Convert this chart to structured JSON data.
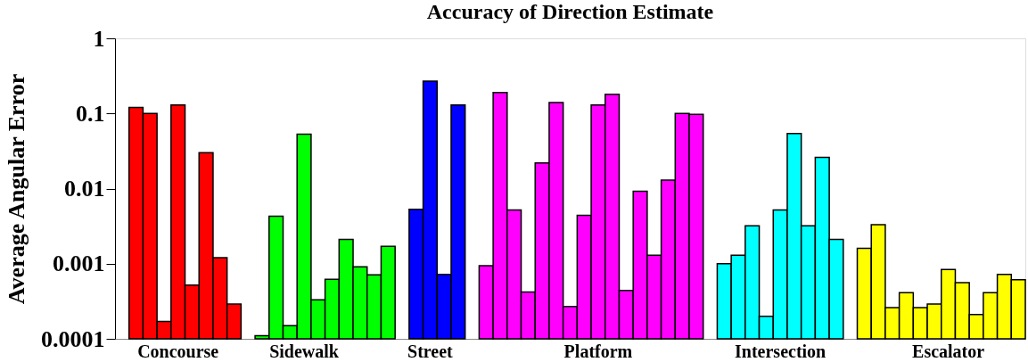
{
  "chart_data": {
    "type": "bar",
    "title": "Accuracy of Direction Estimate",
    "ylabel": "Average Angular Error",
    "log": true,
    "grid": false,
    "ylim": [
      0.0001,
      1
    ],
    "yticks": [
      0.0001,
      0.001,
      0.01,
      0.1,
      1
    ],
    "categories": [
      null,
      null,
      null,
      null,
      "Concourse",
      null,
      null,
      null,
      null,
      null,
      null,
      null,
      null,
      "Sidewalk",
      null,
      null,
      null,
      null,
      null,
      null,
      null,
      null,
      "Street",
      null,
      null,
      null,
      null,
      null,
      null,
      null,
      null,
      null,
      null,
      null,
      "Platform",
      null,
      null,
      null,
      null,
      null,
      null,
      null,
      null,
      null,
      null,
      null,
      null,
      "Intersection",
      null,
      null,
      null,
      null,
      null,
      null,
      null,
      null,
      null,
      null,
      null,
      "Escalator",
      null,
      null,
      null,
      null,
      null
    ],
    "values": [
      null,
      0.12,
      0.1,
      0.00017,
      0.13,
      0.00052,
      0.03,
      0.0012,
      0.00029,
      null,
      0.00011,
      0.0043,
      0.00015,
      0.053,
      0.00033,
      0.00062,
      0.0021,
      0.00091,
      0.00071,
      0.0017,
      null,
      0.0053,
      0.27,
      0.00072,
      0.13,
      null,
      0.00094,
      0.19,
      0.0052,
      0.00042,
      0.022,
      0.14,
      0.00027,
      0.0044,
      0.13,
      0.18,
      0.00044,
      0.0092,
      0.0013,
      0.013,
      0.1,
      0.097,
      null,
      0.001,
      0.0013,
      0.0032,
      0.0002,
      0.0052,
      0.054,
      0.0032,
      0.026,
      0.0021,
      null,
      0.0016,
      0.0033,
      0.00026,
      0.00041,
      0.00026,
      0.00029,
      0.00084,
      0.00056,
      0.00021,
      0.00041,
      0.00072,
      0.00061
    ],
    "colors": [
      null,
      "#ff0000",
      "#ff0000",
      "#ff0000",
      "#ff0000",
      "#ff0000",
      "#ff0000",
      "#ff0000",
      "#ff0000",
      null,
      "#00ff00",
      "#00ff00",
      "#00ff00",
      "#00ff00",
      "#00ff00",
      "#00ff00",
      "#00ff00",
      "#00ff00",
      "#00ff00",
      "#00ff00",
      null,
      "#0000ff",
      "#0000ff",
      "#0000ff",
      "#0000ff",
      null,
      "#ff00ff",
      "#ff00ff",
      "#ff00ff",
      "#ff00ff",
      "#ff00ff",
      "#ff00ff",
      "#ff00ff",
      "#ff00ff",
      "#ff00ff",
      "#ff00ff",
      "#ff00ff",
      "#ff00ff",
      "#ff00ff",
      "#ff00ff",
      "#ff00ff",
      "#ff00ff",
      null,
      "#00ffff",
      "#00ffff",
      "#00ffff",
      "#00ffff",
      "#00ffff",
      "#00ffff",
      "#00ffff",
      "#00ffff",
      "#00ffff",
      null,
      "#ffff00",
      "#ffff00",
      "#ffff00",
      "#ffff00",
      "#ffff00",
      "#ffff00",
      "#ffff00",
      "#ffff00",
      "#ffff00",
      "#ffff00",
      "#ffff00",
      "#ffff00"
    ]
  }
}
